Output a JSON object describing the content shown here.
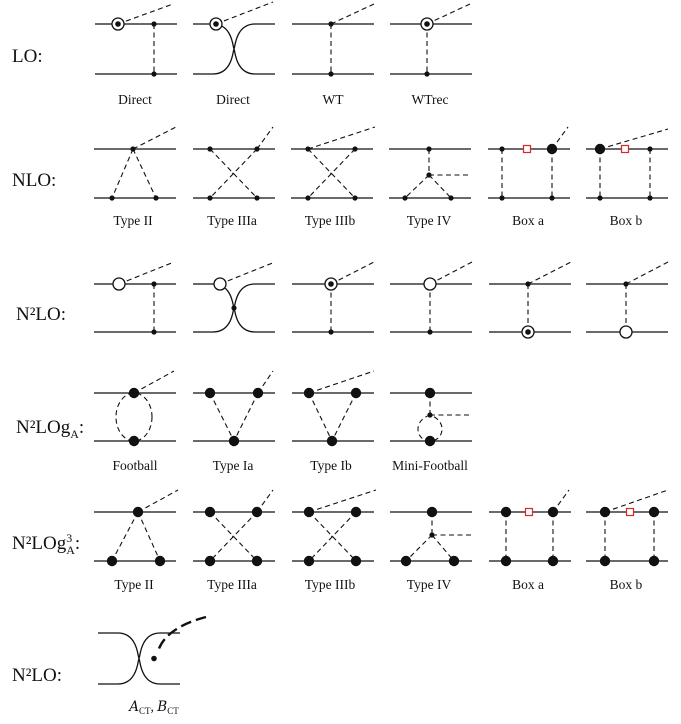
{
  "rows": [
    {
      "label": "LO:",
      "captions": [
        "Direct",
        "Direct",
        "WT",
        "WTrec"
      ]
    },
    {
      "label": "NLO:",
      "captions": [
        "Type II",
        "Type IIIa",
        "Type IIIb",
        "Type IV",
        "Box a",
        "Box b"
      ]
    },
    {
      "label": "N²LO:",
      "captions": []
    },
    {
      "label": "N²LOg",
      "label_sub": "A",
      "label_tail": ":",
      "captions": [
        "Football",
        "Type Ia",
        "Type Ib",
        "Mini-Football"
      ]
    },
    {
      "label": "N²LOg",
      "label_sup": "3",
      "label_sub": "A",
      "label_tail": ":",
      "captions": [
        "Type II",
        "Type IIIa",
        "Type IIIb",
        "Type IV",
        "Box a",
        "Box b"
      ]
    },
    {
      "label": "N²LO:",
      "caption_parts": [
        "A",
        "CT",
        ", ",
        "B",
        "CT"
      ]
    }
  ],
  "colors": {
    "line": "#111111",
    "box_marker": "#d62a2a"
  },
  "icons": {
    "vertex_plain": "small-dot",
    "vertex_big": "large-dot",
    "vertex_open": "open-circle",
    "vertex_ringed": "ringed-dot",
    "counterterm": "red-square"
  }
}
